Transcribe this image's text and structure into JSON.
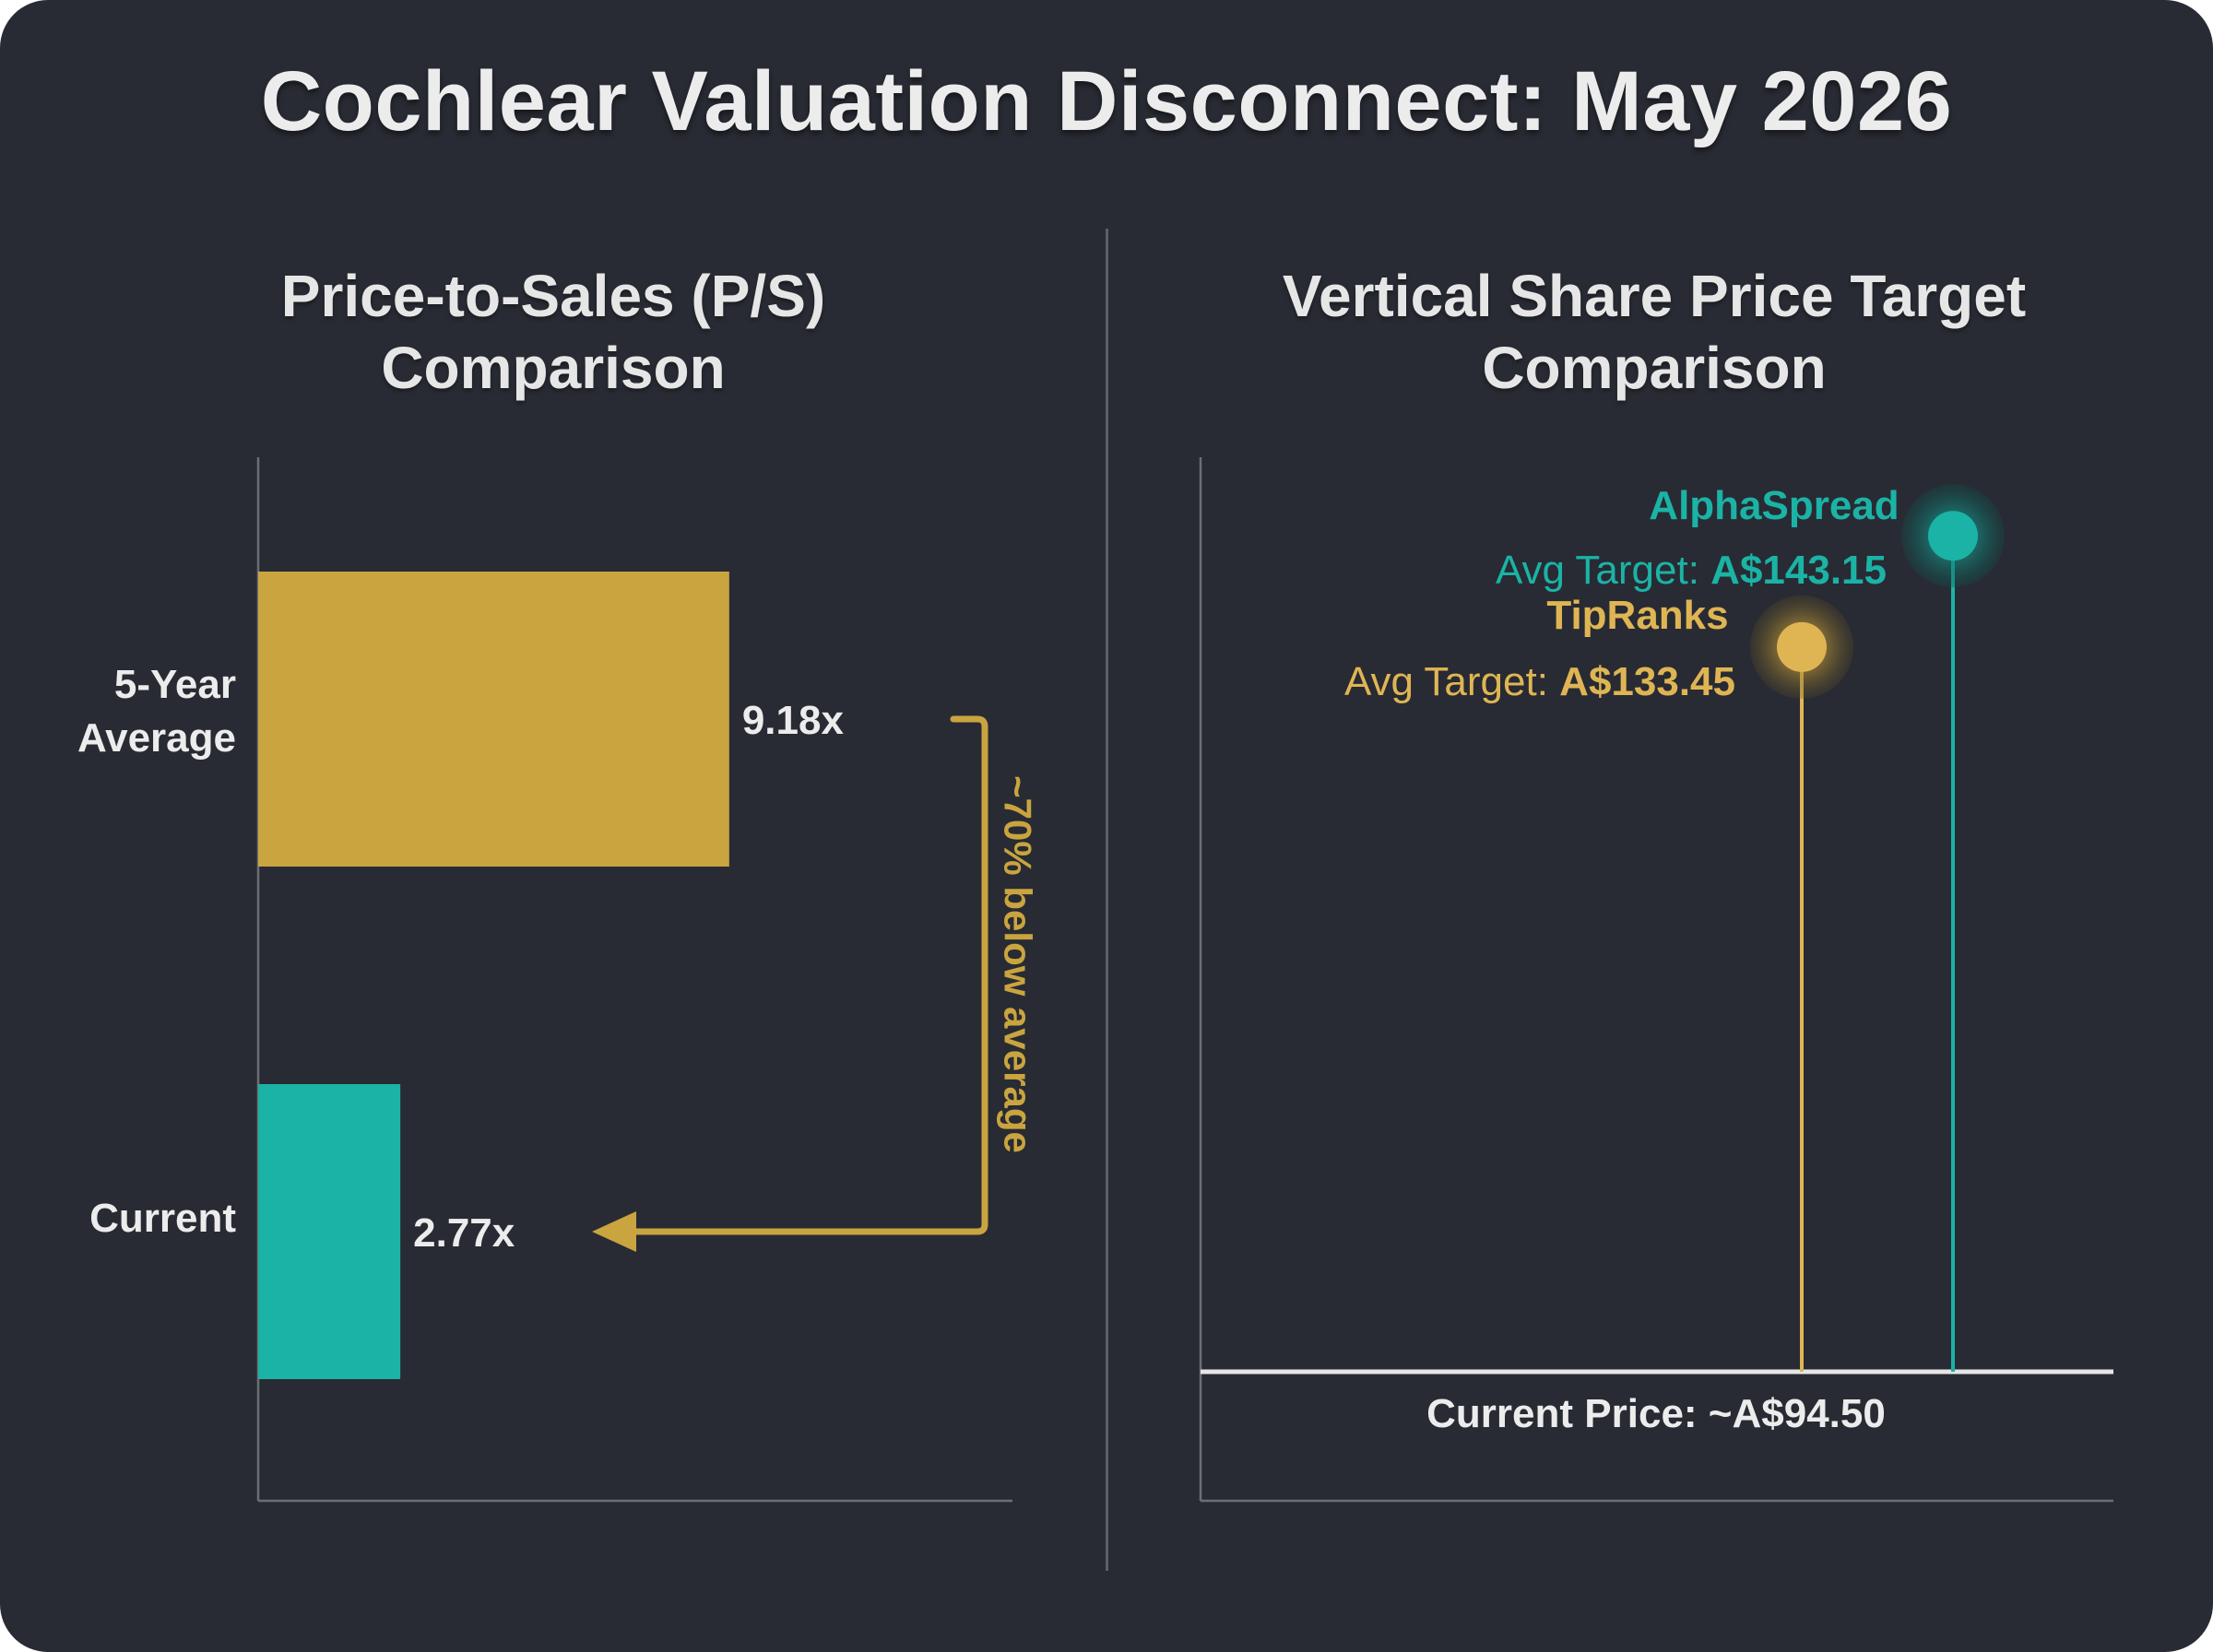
{
  "title": "Cochlear Valuation Disconnect: May 2026",
  "colors": {
    "background": "#282b33",
    "gold": "#c9a43f",
    "teal": "#1bb3a6",
    "text": "#ececec",
    "axis": "#6b6e75"
  },
  "chart_data": [
    {
      "type": "bar",
      "orientation": "horizontal",
      "title_lines": [
        "Price-to-Sales (P/S)",
        "Comparison"
      ],
      "categories": [
        {
          "label_lines": [
            "5-Year",
            "Average"
          ],
          "value": 9.18,
          "value_label": "9.18x",
          "color": "#c9a43f"
        },
        {
          "label_lines": [
            "Current"
          ],
          "value": 2.77,
          "value_label": "2.77x",
          "color": "#1bb3a6"
        }
      ],
      "xlim": [
        0,
        14.7
      ],
      "annotation": {
        "text": "~70% below average",
        "from_category": "5-Year Average",
        "to_category": "Current",
        "color": "#c9a43f"
      },
      "grid": false,
      "legend": "none"
    },
    {
      "type": "lollipop",
      "title_lines": [
        "Vertical Share Price Target",
        "Comparison"
      ],
      "baseline": {
        "value": 94.5,
        "label": "Current Price: ~A$94.50"
      },
      "ylim": [
        59,
        150
      ],
      "series": [
        {
          "name": "TipRanks",
          "prefix": "Avg Target: ",
          "value_label": "A$133.45",
          "value": 133.45,
          "color": "#dfb554"
        },
        {
          "name": "AlphaSpread",
          "prefix": "Avg Target: ",
          "value_label": "A$143.15",
          "value": 143.15,
          "color": "#1bb3a6"
        }
      ],
      "grid": false,
      "legend": "none"
    }
  ]
}
